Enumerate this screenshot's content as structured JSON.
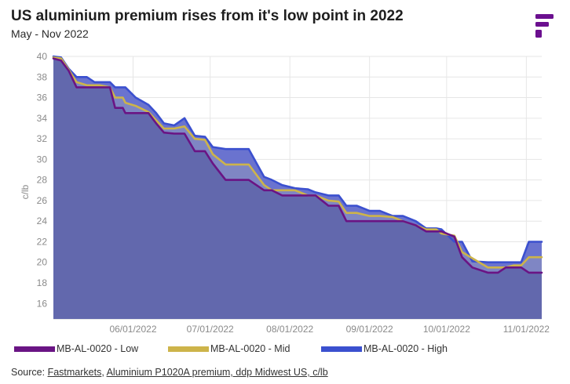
{
  "header": {
    "title": "US aluminium premium rises from it's low point in 2022",
    "subtitle": "May - Nov 2022"
  },
  "brand": {
    "logo_icon": "fastmarkets-f-logo-icon",
    "color": "#6b0f8f"
  },
  "chart_data": {
    "type": "area",
    "ylabel": "c/lb",
    "xlabel": "",
    "ylim": [
      14.5,
      40
    ],
    "yticks": [
      16,
      18,
      20,
      22,
      24,
      26,
      28,
      30,
      32,
      34,
      36,
      38,
      40
    ],
    "x_tick_labels": [
      "06/01/2022",
      "07/01/2022",
      "08/01/2022",
      "09/01/2022",
      "10/01/2022",
      "11/01/2022"
    ],
    "x_tick_positions": [
      32,
      62,
      93,
      124,
      154,
      185
    ],
    "x_range": [
      1,
      191
    ],
    "grid": true,
    "legend_position": "bottom",
    "series": [
      {
        "name": "MB-AL-0020 - Low",
        "color": "#6a1484",
        "fill": "#6268ad",
        "points": [
          [
            1,
            39.8
          ],
          [
            4,
            39.6
          ],
          [
            7,
            38.6
          ],
          [
            10,
            37
          ],
          [
            14,
            37
          ],
          [
            17,
            37
          ],
          [
            19,
            37
          ],
          [
            23,
            37
          ],
          [
            25,
            35
          ],
          [
            28,
            35
          ],
          [
            29,
            34.5
          ],
          [
            33,
            34.5
          ],
          [
            38,
            34.5
          ],
          [
            41,
            33.5
          ],
          [
            44,
            32.6
          ],
          [
            48,
            32.5
          ],
          [
            52,
            32.5
          ],
          [
            56,
            30.8
          ],
          [
            60,
            30.8
          ],
          [
            63,
            29.6
          ],
          [
            68,
            28
          ],
          [
            73,
            28
          ],
          [
            77,
            28
          ],
          [
            83,
            27
          ],
          [
            86,
            27
          ],
          [
            90,
            26.5
          ],
          [
            95,
            26.5
          ],
          [
            100,
            26.5
          ],
          [
            103,
            26.5
          ],
          [
            108,
            25.5
          ],
          [
            112,
            25.5
          ],
          [
            115,
            24
          ],
          [
            119,
            24
          ],
          [
            124,
            24
          ],
          [
            128,
            24
          ],
          [
            133,
            24
          ],
          [
            137,
            24
          ],
          [
            142,
            23.6
          ],
          [
            146,
            23
          ],
          [
            150,
            23
          ],
          [
            152,
            23
          ],
          [
            157,
            22.5
          ],
          [
            160,
            20.5
          ],
          [
            164,
            19.5
          ],
          [
            170,
            19
          ],
          [
            174,
            19
          ],
          [
            177,
            19.5
          ],
          [
            180,
            19.5
          ],
          [
            183,
            19.5
          ],
          [
            186,
            19
          ],
          [
            188,
            19
          ],
          [
            191,
            19
          ]
        ]
      },
      {
        "name": "MB-AL-0020 - Mid",
        "color": "#cdb44a",
        "fill": "#7f86c4",
        "points": [
          [
            1,
            39.9
          ],
          [
            4,
            39.8
          ],
          [
            7,
            38.7
          ],
          [
            10,
            37.5
          ],
          [
            14,
            37.2
          ],
          [
            17,
            37.2
          ],
          [
            19,
            37.2
          ],
          [
            23,
            37
          ],
          [
            25,
            36
          ],
          [
            28,
            36
          ],
          [
            29,
            35.5
          ],
          [
            33,
            35.2
          ],
          [
            38,
            34.6
          ],
          [
            41,
            33.8
          ],
          [
            44,
            33
          ],
          [
            48,
            33
          ],
          [
            52,
            33.2
          ],
          [
            56,
            32
          ],
          [
            60,
            31.9
          ],
          [
            63,
            30.5
          ],
          [
            68,
            29.5
          ],
          [
            73,
            29.5
          ],
          [
            77,
            29.5
          ],
          [
            83,
            27.5
          ],
          [
            86,
            27
          ],
          [
            90,
            27
          ],
          [
            95,
            27
          ],
          [
            100,
            26.5
          ],
          [
            103,
            26.5
          ],
          [
            108,
            26
          ],
          [
            112,
            25.9
          ],
          [
            115,
            24.8
          ],
          [
            119,
            24.8
          ],
          [
            124,
            24.5
          ],
          [
            128,
            24.5
          ],
          [
            133,
            24.4
          ],
          [
            137,
            24
          ],
          [
            142,
            23.6
          ],
          [
            146,
            23.2
          ],
          [
            150,
            23.2
          ],
          [
            152,
            22.8
          ],
          [
            157,
            22.6
          ],
          [
            160,
            21
          ],
          [
            164,
            20.4
          ],
          [
            170,
            19.5
          ],
          [
            174,
            19.5
          ],
          [
            177,
            19.5
          ],
          [
            180,
            19.7
          ],
          [
            183,
            19.7
          ],
          [
            186,
            20.5
          ],
          [
            188,
            20.5
          ],
          [
            191,
            20.5
          ]
        ]
      },
      {
        "name": "MB-AL-0020 - High",
        "color": "#3b50cf",
        "fill": "#6a73cf",
        "points": [
          [
            1,
            40
          ],
          [
            4,
            39.9
          ],
          [
            7,
            38.8
          ],
          [
            10,
            38
          ],
          [
            14,
            38
          ],
          [
            17,
            37.5
          ],
          [
            19,
            37.5
          ],
          [
            23,
            37.5
          ],
          [
            25,
            37
          ],
          [
            28,
            37
          ],
          [
            29,
            37
          ],
          [
            33,
            36
          ],
          [
            38,
            35.3
          ],
          [
            41,
            34.5
          ],
          [
            44,
            33.5
          ],
          [
            48,
            33.3
          ],
          [
            52,
            34
          ],
          [
            56,
            32.3
          ],
          [
            60,
            32.2
          ],
          [
            63,
            31.2
          ],
          [
            68,
            31
          ],
          [
            73,
            31
          ],
          [
            77,
            31
          ],
          [
            83,
            28.3
          ],
          [
            86,
            28
          ],
          [
            90,
            27.5
          ],
          [
            95,
            27.2
          ],
          [
            100,
            27.1
          ],
          [
            103,
            26.8
          ],
          [
            108,
            26.5
          ],
          [
            112,
            26.5
          ],
          [
            115,
            25.5
          ],
          [
            119,
            25.5
          ],
          [
            124,
            25
          ],
          [
            128,
            25
          ],
          [
            133,
            24.5
          ],
          [
            137,
            24.5
          ],
          [
            142,
            24
          ],
          [
            146,
            23.3
          ],
          [
            150,
            23.3
          ],
          [
            152,
            23.2
          ],
          [
            157,
            22
          ],
          [
            160,
            22
          ],
          [
            164,
            20.1
          ],
          [
            170,
            20
          ],
          [
            174,
            20
          ],
          [
            177,
            20
          ],
          [
            180,
            20
          ],
          [
            183,
            20
          ],
          [
            186,
            22
          ],
          [
            188,
            22
          ],
          [
            191,
            22
          ]
        ]
      }
    ]
  },
  "source": {
    "prefix": "Source: ",
    "link1": "Fastmarkets",
    "sep": ", ",
    "link2": "Aluminium P1020A premium, ddp Midwest US, c/lb"
  }
}
